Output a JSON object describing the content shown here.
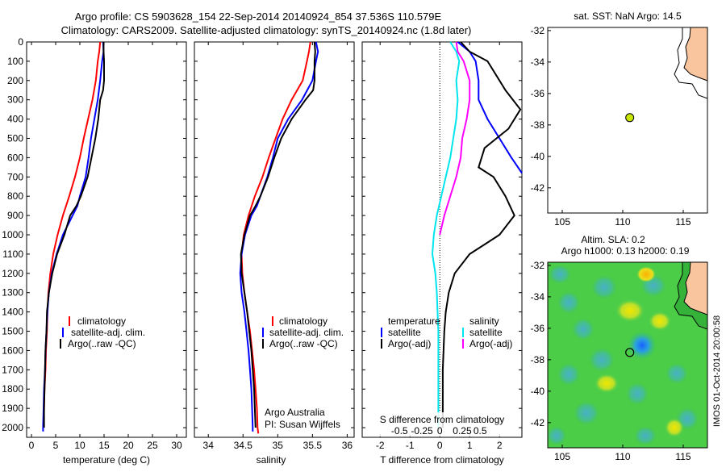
{
  "header": {
    "line1": "Argo profile: CS 5903628_154 22-Sep-2014 20140924_854 37.536S 110.579E",
    "line2": "Climatology: CARS2009. Satellite-adjusted climatology: synTS_20140924.nc (1.8d later)"
  },
  "colors": {
    "climatology": "#ff0000",
    "satellite": "#0000ff",
    "argo": "#000000",
    "cyan": "#00e5ee",
    "magenta": "#ff00ff",
    "land": "#f9c59e"
  },
  "chart_data": [
    {
      "type": "line",
      "id": "temperature",
      "xlabel": "temperature (deg C)",
      "ylabel": "",
      "xlim": [
        -1,
        32
      ],
      "ylim": [
        2050,
        0
      ],
      "x_ticks": [
        0,
        5,
        10,
        15,
        20,
        25,
        30
      ],
      "y_ticks": [
        0,
        100,
        200,
        300,
        400,
        500,
        600,
        700,
        800,
        900,
        1000,
        1100,
        1200,
        1300,
        1400,
        1500,
        1600,
        1700,
        1800,
        1900,
        2000
      ],
      "legend": [
        "climatology",
        "satellite-adj. clim.",
        "Argo(..raw -QC)"
      ],
      "legend_position": "center",
      "series": [
        {
          "name": "climatology",
          "color": "#ff0000",
          "points": [
            [
              14.2,
              0
            ],
            [
              14.0,
              50
            ],
            [
              13.7,
              100
            ],
            [
              13.3,
              200
            ],
            [
              12.6,
              300
            ],
            [
              11.7,
              400
            ],
            [
              10.8,
              500
            ],
            [
              10.0,
              600
            ],
            [
              9.0,
              700
            ],
            [
              7.8,
              800
            ],
            [
              6.5,
              900
            ],
            [
              5.4,
              1000
            ],
            [
              4.5,
              1100
            ],
            [
              3.9,
              1200
            ],
            [
              3.5,
              1300
            ],
            [
              3.3,
              1400
            ],
            [
              3.2,
              1500
            ],
            [
              3.0,
              1600
            ],
            [
              2.9,
              1700
            ],
            [
              2.7,
              1800
            ],
            [
              2.6,
              1900
            ],
            [
              2.5,
              2000
            ]
          ]
        },
        {
          "name": "satellite-adj. clim.",
          "color": "#0000ff",
          "points": [
            [
              14.8,
              0
            ],
            [
              14.9,
              50
            ],
            [
              14.6,
              100
            ],
            [
              14.2,
              200
            ],
            [
              13.7,
              300
            ],
            [
              13.0,
              400
            ],
            [
              12.3,
              500
            ],
            [
              11.8,
              600
            ],
            [
              11.2,
              700
            ],
            [
              10.0,
              800
            ],
            [
              9.5,
              850
            ],
            [
              8.5,
              900
            ],
            [
              6.5,
              1000
            ],
            [
              5.2,
              1100
            ],
            [
              4.2,
              1200
            ],
            [
              3.6,
              1300
            ],
            [
              3.3,
              1400
            ],
            [
              3.1,
              1500
            ],
            [
              2.9,
              1600
            ],
            [
              2.8,
              1700
            ],
            [
              2.6,
              1800
            ],
            [
              2.5,
              1900
            ],
            [
              2.4,
              2000
            ],
            [
              2.4,
              2020
            ]
          ]
        },
        {
          "name": "Argo(..raw -QC)",
          "color": "#000000",
          "points": [
            [
              14.9,
              0
            ],
            [
              14.9,
              50
            ],
            [
              15.0,
              100
            ],
            [
              15.0,
              200
            ],
            [
              14.8,
              250
            ],
            [
              14.2,
              300
            ],
            [
              13.8,
              400
            ],
            [
              13.2,
              500
            ],
            [
              12.4,
              600
            ],
            [
              11.6,
              700
            ],
            [
              10.2,
              800
            ],
            [
              9.3,
              850
            ],
            [
              8.0,
              900
            ],
            [
              6.8,
              1000
            ],
            [
              5.3,
              1100
            ],
            [
              4.3,
              1200
            ],
            [
              3.6,
              1300
            ],
            [
              3.2,
              1400
            ],
            [
              3.1,
              1500
            ],
            [
              2.9,
              1600
            ],
            [
              2.8,
              1700
            ],
            [
              2.7,
              1800
            ],
            [
              2.6,
              1900
            ],
            [
              2.6,
              2000
            ]
          ]
        }
      ]
    },
    {
      "type": "line",
      "id": "salinity",
      "xlabel": "salinity",
      "xlim": [
        33.8,
        36.1
      ],
      "ylim": [
        2050,
        0
      ],
      "x_ticks": [
        34,
        34.5,
        35,
        35.5,
        36
      ],
      "legend": [
        "climatology",
        "satellite-adj. clim.",
        "Argo(..raw -QC)"
      ],
      "legend_position": "center",
      "annotation": [
        "Argo Australia",
        "PI: Susan Wijffels"
      ],
      "series": [
        {
          "name": "climatology",
          "color": "#ff0000",
          "points": [
            [
              35.47,
              0
            ],
            [
              35.45,
              50
            ],
            [
              35.42,
              100
            ],
            [
              35.36,
              200
            ],
            [
              35.2,
              300
            ],
            [
              35.07,
              400
            ],
            [
              34.97,
              500
            ],
            [
              34.87,
              600
            ],
            [
              34.78,
              700
            ],
            [
              34.67,
              800
            ],
            [
              34.58,
              900
            ],
            [
              34.51,
              1000
            ],
            [
              34.48,
              1100
            ],
            [
              34.49,
              1200
            ],
            [
              34.52,
              1300
            ],
            [
              34.56,
              1400
            ],
            [
              34.6,
              1500
            ],
            [
              34.63,
              1600
            ],
            [
              34.66,
              1700
            ],
            [
              34.68,
              1800
            ],
            [
              34.7,
              1900
            ],
            [
              34.71,
              2000
            ],
            [
              34.72,
              2030
            ]
          ]
        },
        {
          "name": "satellite-adj. clim.",
          "color": "#0000ff",
          "points": [
            [
              35.55,
              0
            ],
            [
              35.58,
              50
            ],
            [
              35.55,
              100
            ],
            [
              35.5,
              200
            ],
            [
              35.35,
              300
            ],
            [
              35.15,
              400
            ],
            [
              35.0,
              500
            ],
            [
              34.93,
              600
            ],
            [
              34.85,
              700
            ],
            [
              34.75,
              800
            ],
            [
              34.7,
              850
            ],
            [
              34.62,
              900
            ],
            [
              34.53,
              1000
            ],
            [
              34.48,
              1100
            ],
            [
              34.46,
              1200
            ],
            [
              34.48,
              1300
            ],
            [
              34.52,
              1400
            ],
            [
              34.55,
              1500
            ],
            [
              34.58,
              1600
            ],
            [
              34.6,
              1700
            ],
            [
              34.62,
              1800
            ],
            [
              34.63,
              1900
            ],
            [
              34.64,
              2000
            ],
            [
              34.64,
              2020
            ]
          ]
        },
        {
          "name": "Argo(..raw -QC)",
          "color": "#000000",
          "points": [
            [
              35.53,
              0
            ],
            [
              35.54,
              50
            ],
            [
              35.53,
              100
            ],
            [
              35.53,
              200
            ],
            [
              35.51,
              250
            ],
            [
              35.4,
              300
            ],
            [
              35.3,
              350
            ],
            [
              35.2,
              400
            ],
            [
              35.05,
              500
            ],
            [
              34.95,
              600
            ],
            [
              34.86,
              700
            ],
            [
              34.75,
              800
            ],
            [
              34.68,
              850
            ],
            [
              34.6,
              900
            ],
            [
              34.52,
              1000
            ],
            [
              34.47,
              1100
            ],
            [
              34.48,
              1200
            ],
            [
              34.52,
              1300
            ],
            [
              34.56,
              1400
            ],
            [
              34.59,
              1500
            ],
            [
              34.62,
              1600
            ],
            [
              34.64,
              1700
            ],
            [
              34.66,
              1800
            ],
            [
              34.67,
              1900
            ],
            [
              34.68,
              2000
            ]
          ]
        }
      ]
    },
    {
      "type": "line",
      "id": "differences",
      "xlabel": "T difference from climatology",
      "top_axis_label": "S difference from climatology",
      "xlim": [
        -2.6,
        2.75
      ],
      "ylim": [
        2050,
        0
      ],
      "x_ticks": [
        -2,
        -1,
        0,
        1,
        2
      ],
      "top_ticks": [
        "-0.5",
        "-0.25",
        "0",
        "0.25",
        "0.5"
      ],
      "legend_temperature": {
        "title": "temperature",
        "entries": [
          "satellite",
          "Argo(-adj)"
        ]
      },
      "legend_salinity": {
        "title": "salinity",
        "entries": [
          "satellite",
          "Argo(-adj)"
        ]
      },
      "series": [
        {
          "name": "temperature satellite",
          "color": "#0000ff",
          "points": [
            [
              0.6,
              0
            ],
            [
              1.0,
              50
            ],
            [
              1.2,
              100
            ],
            [
              1.3,
              200
            ],
            [
              1.3,
              300
            ],
            [
              1.6,
              400
            ],
            [
              2.0,
              500
            ],
            [
              2.4,
              600
            ],
            [
              2.75,
              680
            ]
          ]
        },
        {
          "name": "temperature Argo(-adj)",
          "color": "#000000",
          "points": [
            [
              0.7,
              0
            ],
            [
              1.0,
              50
            ],
            [
              1.6,
              100
            ],
            [
              2.2,
              250
            ],
            [
              2.7,
              350
            ],
            [
              2.3,
              450
            ],
            [
              1.9,
              500
            ],
            [
              1.5,
              550
            ],
            [
              1.3,
              650
            ],
            [
              1.8,
              700
            ],
            [
              2.2,
              800
            ],
            [
              2.5,
              900
            ],
            [
              2.0,
              1000
            ],
            [
              1.5,
              1050
            ],
            [
              1.0,
              1100
            ],
            [
              0.5,
              1200
            ],
            [
              0.3,
              1300
            ],
            [
              0.2,
              1400
            ],
            [
              0.15,
              1500
            ],
            [
              0.1,
              1700
            ],
            [
              0.1,
              2000
            ]
          ]
        },
        {
          "name": "salinity satellite",
          "color": "#00e5ee",
          "points": [
            [
              0.35,
              0
            ],
            [
              0.55,
              50
            ],
            [
              0.65,
              100
            ],
            [
              0.55,
              200
            ],
            [
              0.6,
              300
            ],
            [
              0.55,
              400
            ],
            [
              0.45,
              500
            ],
            [
              0.35,
              600
            ],
            [
              0.2,
              700
            ],
            [
              0.05,
              800
            ],
            [
              -0.1,
              900
            ],
            [
              -0.2,
              1000
            ],
            [
              -0.25,
              1100
            ],
            [
              -0.15,
              1200
            ],
            [
              -0.1,
              1300
            ],
            [
              -0.05,
              1500
            ],
            [
              -0.05,
              1700
            ],
            [
              -0.05,
              2000
            ]
          ]
        },
        {
          "name": "salinity Argo(-adj)",
          "color": "#ff00ff",
          "points": [
            [
              0.55,
              0
            ],
            [
              0.6,
              50
            ],
            [
              0.8,
              100
            ],
            [
              1.0,
              200
            ],
            [
              1.0,
              300
            ],
            [
              0.9,
              400
            ],
            [
              0.75,
              500
            ],
            [
              0.7,
              600
            ],
            [
              0.55,
              700
            ],
            [
              0.35,
              800
            ],
            [
              0.15,
              900
            ],
            [
              0.0,
              1000
            ]
          ]
        }
      ]
    },
    {
      "type": "scatter",
      "id": "sst-map",
      "title": "sat. SST: NaN Argo: 14.5",
      "xlim": [
        103.8,
        117.0
      ],
      "ylim": [
        -43.6,
        -31.8
      ],
      "x_ticks": [
        105,
        110,
        115
      ],
      "y_ticks": [
        -42,
        -40,
        -38,
        -36,
        -34,
        -32
      ],
      "marker": {
        "lon": 110.579,
        "lat": -37.536,
        "color": "#c8e600"
      }
    },
    {
      "type": "heatmap",
      "id": "sla-map",
      "title": "Altim. SLA: 0.2",
      "subtitle": "Argo h1000: 0.13 h2000: 0.19",
      "xlim": [
        103.8,
        117.0
      ],
      "ylim": [
        -43.6,
        -31.8
      ],
      "x_ticks": [
        105,
        110,
        115
      ],
      "y_ticks": [
        -42,
        -40,
        -38,
        -36,
        -34,
        -32
      ],
      "marker": {
        "lon": 110.579,
        "lat": -37.536
      }
    }
  ],
  "side_stamp": "IMOS 01-Oct-2014 20:00:58"
}
